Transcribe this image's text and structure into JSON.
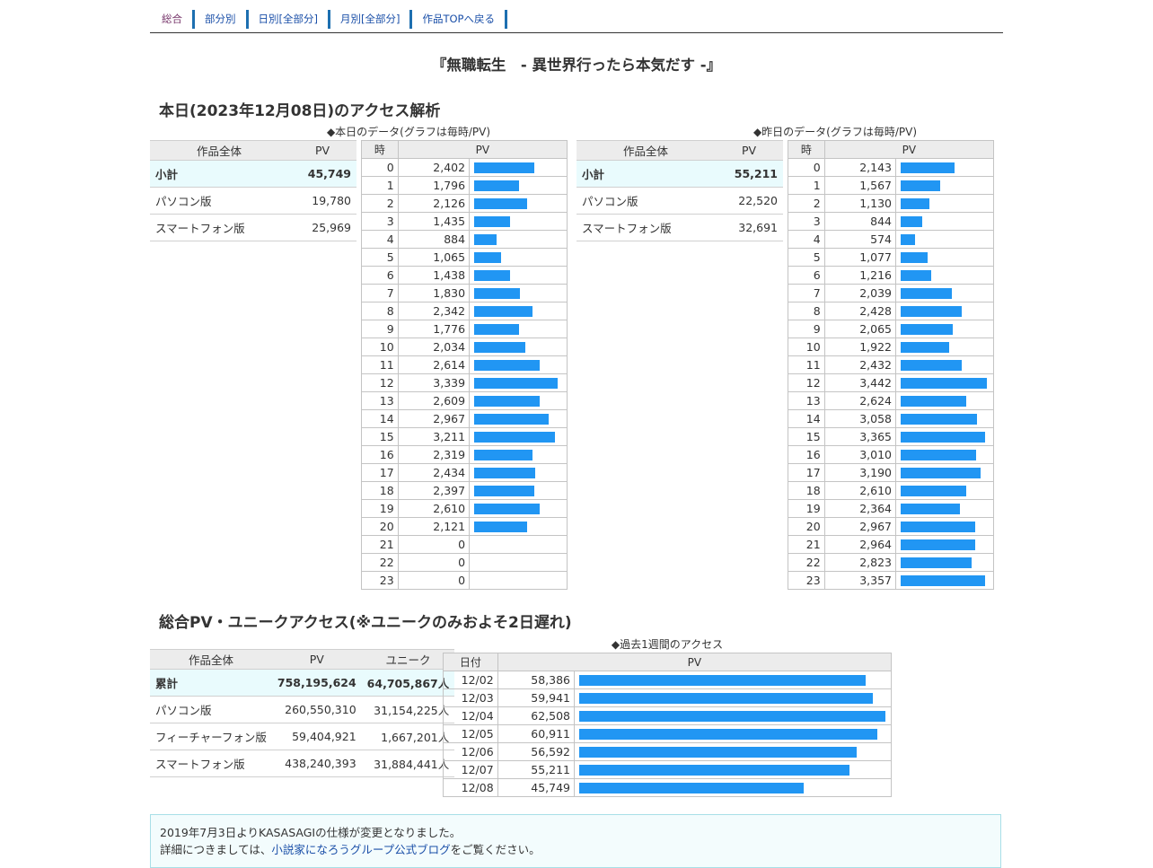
{
  "nav": [
    {
      "label": "総合",
      "current": true
    },
    {
      "label": "部分別",
      "current": false
    },
    {
      "label": "日別[全部分]",
      "current": false
    },
    {
      "label": "月別[全部分]",
      "current": false
    },
    {
      "label": "作品TOPへ戻る",
      "current": false
    }
  ],
  "novel_title": "『無職転生　- 異世界行ったら本気だす -』",
  "today": {
    "title": "本日(2023年12月08日)のアクセス解析",
    "today_caption": "◆本日のデータ(グラフは毎時/PV)",
    "yesterday_caption": "◆昨日のデータ(グラフは毎時/PV)",
    "summary_headers": [
      "作品全体",
      "PV"
    ],
    "hourly_headers": [
      "時",
      "PV"
    ],
    "today_summary": [
      {
        "label": "小計",
        "value": "45,749"
      },
      {
        "label": "パソコン版",
        "value": "19,780"
      },
      {
        "label": "スマートフォン版",
        "value": "25,969"
      }
    ],
    "yesterday_summary": [
      {
        "label": "小計",
        "value": "55,211"
      },
      {
        "label": "パソコン版",
        "value": "22,520"
      },
      {
        "label": "スマートフォン版",
        "value": "32,691"
      }
    ],
    "bar_scale_max": 3442,
    "today_hourly": [
      2402,
      1796,
      2126,
      1435,
      884,
      1065,
      1438,
      1830,
      2342,
      1776,
      2034,
      2614,
      3339,
      2609,
      2967,
      3211,
      2319,
      2434,
      2397,
      2610,
      2121,
      0,
      0,
      0
    ],
    "yesterday_hourly": [
      2143,
      1567,
      1130,
      844,
      574,
      1077,
      1216,
      2039,
      2428,
      2065,
      1922,
      2432,
      3442,
      2624,
      3058,
      3365,
      3010,
      3190,
      2610,
      2364,
      2967,
      2964,
      2823,
      3357
    ]
  },
  "overall": {
    "title": "総合PV・ユニークアクセス(※ユニークのみおよそ2日遅れ)",
    "headers": [
      "作品全体",
      "PV",
      "ユニーク"
    ],
    "rows": [
      {
        "label": "累計",
        "pv": "758,195,624",
        "unique": "64,705,867人"
      },
      {
        "label": "パソコン版",
        "pv": "260,550,310",
        "unique": "31,154,225人"
      },
      {
        "label": "フィーチャーフォン版",
        "pv": "59,404,921",
        "unique": "1,667,201人"
      },
      {
        "label": "スマートフォン版",
        "pv": "438,240,393",
        "unique": "31,884,441人"
      }
    ],
    "week_caption": "◆過去1週間のアクセス",
    "week_headers": [
      "日付",
      "PV"
    ],
    "bar_scale_max": 62508,
    "week": [
      {
        "date": "12/02",
        "pv": 58386
      },
      {
        "date": "12/03",
        "pv": 59941
      },
      {
        "date": "12/04",
        "pv": 62508
      },
      {
        "date": "12/05",
        "pv": 60911
      },
      {
        "date": "12/06",
        "pv": 56592
      },
      {
        "date": "12/07",
        "pv": 55211
      },
      {
        "date": "12/08",
        "pv": 45749
      }
    ]
  },
  "info": {
    "line1": "2019年7月3日よりKASASAGIの仕様が変更となりました。",
    "line2_prefix": "詳細につきましては、",
    "line2_link": "小説家になろうグループ公式ブログ",
    "line2_suffix": "をご覧ください。"
  },
  "colors": {
    "bar": "#2196f3",
    "nav_border": "#1d6fb0",
    "link": "#1a4fa8",
    "highlight_row": "#e9fbfd"
  }
}
